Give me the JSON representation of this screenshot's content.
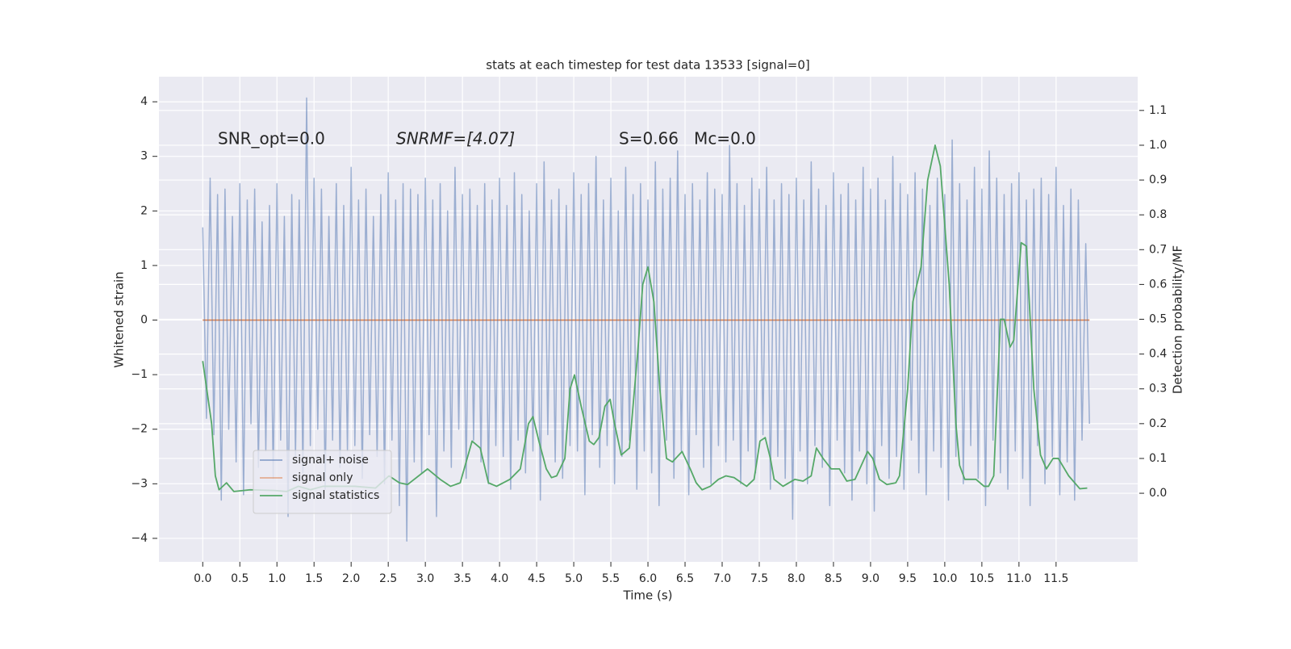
{
  "chart_data": {
    "type": "line",
    "title": "stats at each timestep for test data 13533 [signal=0]",
    "xlabel": "Time (s)",
    "ylabel": "Whitened strain",
    "y2label": "Detection probability/MF",
    "annotations": [
      "SNR_opt=0.0",
      "SNRMF=[4.07]",
      "S=0.66   Mc=0.0"
    ],
    "xlim": [
      -0.59,
      12.6
    ],
    "ylim": [
      -4.43,
      4.46
    ],
    "y2lim": [
      -0.197,
      1.197
    ],
    "xticks": [
      {
        "value": 0,
        "label": "0.0"
      },
      0.5,
      {
        "value": 1,
        "label": "1.0"
      },
      1.5,
      {
        "value": 2,
        "label": "2.0"
      },
      2.5,
      {
        "value": 3,
        "label": "3.0"
      },
      3.5,
      {
        "value": 4,
        "label": "4.0"
      },
      4.5,
      {
        "value": 5,
        "label": "5.0"
      },
      5.5,
      {
        "value": 6,
        "label": "6.0"
      },
      6.5,
      {
        "value": 7,
        "label": "7.0"
      },
      7.5,
      {
        "value": 8,
        "label": "8.0"
      },
      8.5,
      {
        "value": 9,
        "label": "9.0"
      },
      9.5,
      {
        "value": 10,
        "label": "10.0"
      },
      10.5,
      {
        "value": 11,
        "label": "11.0"
      },
      11.5
    ],
    "yticks": [
      {
        "value": -4,
        "label": "−4"
      },
      {
        "value": -3,
        "label": "−3"
      },
      {
        "value": -2,
        "label": "−2"
      },
      {
        "value": -1,
        "label": "−1"
      },
      0,
      1,
      2,
      3,
      4
    ],
    "y2ticks": [
      {
        "value": 0,
        "label": "0.0"
      },
      0.1,
      0.2,
      0.3,
      0.4,
      0.5,
      0.6,
      0.7,
      0.8,
      0.9,
      {
        "value": 1,
        "label": "1.0"
      },
      1.1
    ],
    "grid": true,
    "legend": "lower left",
    "series": [
      {
        "name": "signal+ noise",
        "color": "#4c72b0",
        "x": [
          0,
          0.05,
          0.1,
          0.15,
          0.2,
          0.25,
          0.3,
          0.35,
          0.4,
          0.45,
          0.5,
          0.55,
          0.6,
          0.65,
          0.7,
          0.75,
          0.8,
          0.85,
          0.9,
          0.95,
          1,
          1.05,
          1.1,
          1.15,
          1.2,
          1.25,
          1.3,
          1.35,
          1.4,
          1.45,
          1.5,
          1.55,
          1.6,
          1.65,
          1.7,
          1.75,
          1.8,
          1.85,
          1.9,
          1.95,
          2,
          2.05,
          2.1,
          2.15,
          2.2,
          2.25,
          2.3,
          2.35,
          2.4,
          2.45,
          2.5,
          2.55,
          2.6,
          2.65,
          2.7,
          2.75,
          2.8,
          2.85,
          2.9,
          2.95,
          3,
          3.05,
          3.1,
          3.15,
          3.2,
          3.25,
          3.3,
          3.35,
          3.4,
          3.45,
          3.5,
          3.55,
          3.6,
          3.65,
          3.7,
          3.75,
          3.8,
          3.85,
          3.9,
          3.95,
          4,
          4.05,
          4.1,
          4.15,
          4.2,
          4.25,
          4.3,
          4.35,
          4.4,
          4.45,
          4.5,
          4.55,
          4.6,
          4.65,
          4.7,
          4.75,
          4.8,
          4.85,
          4.9,
          4.95,
          5,
          5.05,
          5.1,
          5.15,
          5.2,
          5.25,
          5.3,
          5.35,
          5.4,
          5.45,
          5.5,
          5.55,
          5.6,
          5.65,
          5.7,
          5.75,
          5.8,
          5.85,
          5.9,
          5.95,
          6,
          6.05,
          6.1,
          6.15,
          6.2,
          6.25,
          6.3,
          6.35,
          6.4,
          6.45,
          6.5,
          6.55,
          6.6,
          6.65,
          6.7,
          6.75,
          6.8,
          6.85,
          6.9,
          6.95,
          7,
          7.05,
          7.1,
          7.15,
          7.2,
          7.25,
          7.3,
          7.35,
          7.4,
          7.45,
          7.5,
          7.55,
          7.6,
          7.65,
          7.7,
          7.75,
          7.8,
          7.85,
          7.9,
          7.95,
          8,
          8.05,
          8.1,
          8.15,
          8.2,
          8.25,
          8.3,
          8.35,
          8.4,
          8.45,
          8.5,
          8.55,
          8.6,
          8.65,
          8.7,
          8.75,
          8.8,
          8.85,
          8.9,
          8.95,
          9,
          9.05,
          9.1,
          9.15,
          9.2,
          9.25,
          9.3,
          9.35,
          9.4,
          9.45,
          9.5,
          9.55,
          9.6,
          9.65,
          9.7,
          9.75,
          9.8,
          9.85,
          9.9,
          9.95,
          10,
          10.05,
          10.1,
          10.15,
          10.2,
          10.25,
          10.3,
          10.35,
          10.4,
          10.45,
          10.5,
          10.55,
          10.6,
          10.65,
          10.7,
          10.75,
          10.8,
          10.85,
          10.9,
          10.95,
          11,
          11.05,
          11.1,
          11.15,
          11.2,
          11.25,
          11.3,
          11.35,
          11.4,
          11.45,
          11.5,
          11.55,
          11.6,
          11.65,
          11.7,
          11.75,
          11.8,
          11.85,
          11.9,
          11.95
        ],
        "values": [
          1.7,
          -1.8,
          2.6,
          -2.1,
          2.3,
          -3.3,
          2.4,
          -2.0,
          1.9,
          -2.6,
          2.5,
          -3.2,
          2.2,
          -1.9,
          2.4,
          -2.7,
          1.8,
          -2.4,
          2.1,
          -2.9,
          2.5,
          -2.2,
          1.9,
          -3.6,
          2.3,
          -2.5,
          2.2,
          -2.8,
          4.07,
          -2.3,
          2.6,
          -2.0,
          2.4,
          -3.1,
          1.9,
          -2.2,
          2.5,
          -2.7,
          2.1,
          -2.4,
          2.8,
          -2.3,
          2.2,
          -2.9,
          2.4,
          -2.1,
          1.9,
          -2.5,
          2.3,
          -3.0,
          2.7,
          -2.2,
          2.2,
          -3.4,
          2.5,
          -4.05,
          2.4,
          -2.6,
          2.3,
          -2.8,
          2.6,
          -2.1,
          2.2,
          -3.6,
          2.5,
          -2.4,
          2.0,
          -2.7,
          2.8,
          -2.0,
          2.3,
          -2.9,
          2.4,
          -2.2,
          2.1,
          -2.6,
          2.5,
          -3.0,
          2.2,
          -2.3,
          2.6,
          -2.5,
          2.1,
          -3.1,
          2.7,
          -2.2,
          2.3,
          -2.8,
          2.0,
          -2.4,
          2.5,
          -3.3,
          2.9,
          -2.1,
          2.2,
          -2.6,
          2.4,
          -2.9,
          2.1,
          -2.3,
          2.7,
          -2.4,
          2.3,
          -3.2,
          2.5,
          -2.1,
          3.0,
          -2.7,
          2.2,
          -2.3,
          2.6,
          -3.0,
          2.0,
          -2.5,
          2.8,
          -2.2,
          2.3,
          -3.1,
          2.5,
          -2.4,
          2.2,
          -2.8,
          2.9,
          -3.4,
          2.4,
          -2.2,
          2.6,
          -2.9,
          3.1,
          -2.4,
          2.3,
          -3.2,
          2.5,
          -2.1,
          2.2,
          -2.7,
          2.7,
          -3.0,
          2.4,
          -2.3,
          2.3,
          -2.6,
          3.2,
          -2.2,
          2.5,
          -3.0,
          2.1,
          -2.4,
          2.6,
          -2.8,
          2.4,
          -2.1,
          2.8,
          -3.1,
          2.2,
          -2.5,
          2.5,
          -2.9,
          2.3,
          -3.65,
          2.6,
          -2.4,
          2.2,
          -3.0,
          2.9,
          -2.3,
          2.4,
          -2.7,
          2.1,
          -3.4,
          2.7,
          -2.2,
          2.3,
          -2.8,
          2.5,
          -3.3,
          2.2,
          -2.4,
          2.8,
          -3.0,
          2.4,
          -3.5,
          2.6,
          -2.3,
          2.2,
          -2.9,
          3.0,
          -2.5,
          2.5,
          -3.1,
          2.3,
          -2.2,
          2.7,
          -2.8,
          2.4,
          -3.2,
          2.1,
          -2.4,
          2.6,
          -2.7,
          2.3,
          -3.3,
          3.3,
          -2.5,
          2.5,
          -3.0,
          2.2,
          -2.3,
          2.8,
          -2.9,
          2.4,
          -3.4,
          3.1,
          -2.2,
          2.6,
          -2.8,
          2.3,
          -3.1,
          2.5,
          -2.4,
          2.7,
          -2.9,
          2.2,
          -3.4,
          2.4,
          -2.3,
          2.6,
          -3.0,
          2.3,
          -2.5,
          2.8,
          -3.2,
          2.1,
          -2.6,
          2.4,
          -3.3,
          2.2,
          -2.2,
          1.4,
          -1.9
        ]
      },
      {
        "name": "signal only",
        "color": "#dd8452",
        "x": [
          0,
          11.95
        ],
        "values": [
          0,
          0
        ]
      },
      {
        "name": "signal statistics",
        "color": "#55a868",
        "axis": "y2",
        "x": [
          0,
          0.12,
          0.17,
          0.22,
          0.32,
          0.42,
          0.64,
          0.97,
          1.13,
          1.29,
          1.45,
          1.62,
          1.84,
          2.05,
          2.33,
          2.51,
          2.65,
          2.76,
          3.03,
          3.2,
          3.34,
          3.47,
          3.63,
          3.74,
          3.85,
          3.96,
          4.14,
          4.28,
          4.39,
          4.45,
          4.53,
          4.63,
          4.7,
          4.77,
          4.88,
          4.95,
          5.01,
          5.1,
          5.21,
          5.27,
          5.34,
          5.42,
          5.49,
          5.55,
          5.64,
          5.75,
          5.86,
          5.93,
          6.0,
          6.08,
          6.16,
          6.25,
          6.33,
          6.46,
          6.57,
          6.65,
          6.73,
          6.84,
          6.95,
          7.05,
          7.16,
          7.33,
          7.43,
          7.51,
          7.58,
          7.65,
          7.7,
          7.82,
          7.98,
          8.09,
          8.2,
          8.27,
          8.36,
          8.47,
          8.58,
          8.68,
          8.79,
          8.96,
          9.03,
          9.12,
          9.22,
          9.34,
          9.39,
          9.5,
          9.57,
          9.68,
          9.77,
          9.87,
          9.94,
          10.06,
          10.15,
          10.2,
          10.27,
          10.42,
          10.53,
          10.59,
          10.66,
          10.75,
          10.8,
          10.88,
          10.93,
          11.03,
          11.1,
          11.2,
          11.29,
          11.37,
          11.46,
          11.53,
          11.67,
          11.82,
          11.92
        ],
        "values": [
          0.38,
          0.2,
          0.05,
          0.01,
          0.03,
          0.005,
          0.01,
          0.008,
          0.005,
          0.02,
          0.01,
          0.02,
          0.02,
          0.02,
          0.015,
          0.05,
          0.03,
          0.025,
          0.07,
          0.04,
          0.02,
          0.03,
          0.15,
          0.13,
          0.03,
          0.02,
          0.04,
          0.07,
          0.2,
          0.22,
          0.15,
          0.07,
          0.045,
          0.05,
          0.1,
          0.3,
          0.34,
          0.25,
          0.15,
          0.14,
          0.16,
          0.25,
          0.27,
          0.2,
          0.11,
          0.13,
          0.4,
          0.6,
          0.65,
          0.55,
          0.3,
          0.1,
          0.09,
          0.12,
          0.07,
          0.03,
          0.01,
          0.02,
          0.04,
          0.05,
          0.045,
          0.02,
          0.04,
          0.15,
          0.16,
          0.1,
          0.04,
          0.02,
          0.04,
          0.035,
          0.05,
          0.13,
          0.1,
          0.07,
          0.07,
          0.035,
          0.04,
          0.12,
          0.1,
          0.04,
          0.025,
          0.03,
          0.05,
          0.3,
          0.55,
          0.65,
          0.9,
          1.0,
          0.94,
          0.6,
          0.2,
          0.08,
          0.04,
          0.04,
          0.02,
          0.02,
          0.05,
          0.5,
          0.5,
          0.42,
          0.44,
          0.72,
          0.71,
          0.3,
          0.11,
          0.07,
          0.1,
          0.1,
          0.05,
          0.013,
          0.015
        ]
      }
    ]
  }
}
